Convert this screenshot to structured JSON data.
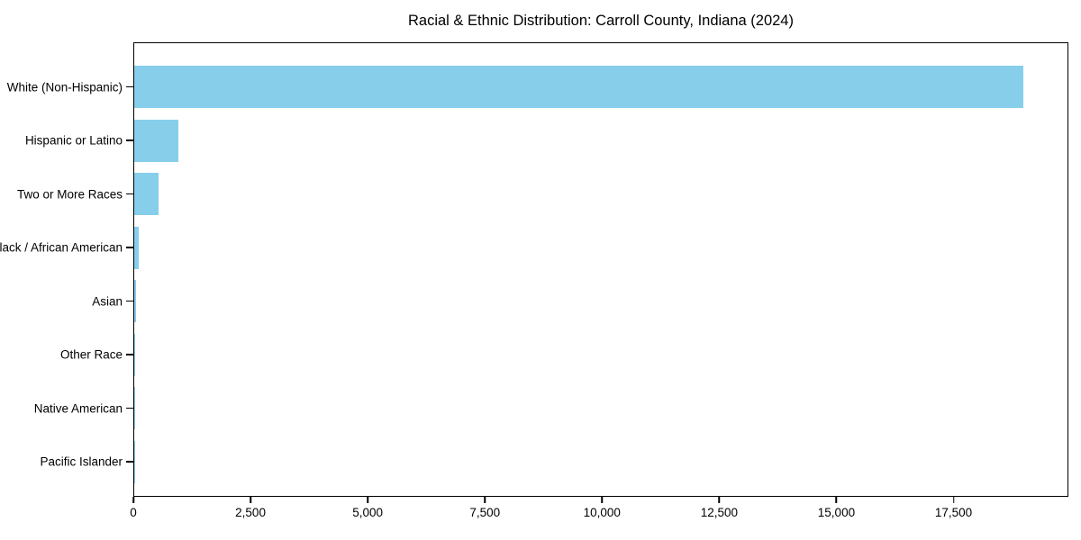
{
  "figure": {
    "title": "Racial & Ethnic Distribution: Carroll County, Indiana (2024)"
  },
  "colors": {
    "bar": "#87CEEB",
    "axis": "#000000",
    "text": "#000000",
    "background": "#FFFFFF"
  },
  "chart_data": {
    "type": "bar",
    "orientation": "horizontal",
    "title": "Racial & Ethnic Distribution: Carroll County, Indiana (2024)",
    "categories": [
      "White (Non-Hispanic)",
      "Hispanic or Latino",
      "Two or More Races",
      "Black / African American",
      "Asian",
      "Other Race",
      "Native American",
      "Pacific Islander"
    ],
    "values": [
      19000,
      935,
      525,
      88,
      30,
      18,
      10,
      4
    ],
    "xlabel": "",
    "ylabel": "",
    "xlim": [
      0,
      19950
    ],
    "xticks": [
      0,
      2500,
      5000,
      7500,
      10000,
      12500,
      15000,
      17500
    ],
    "xtick_labels": [
      "0",
      "2,500",
      "5,000",
      "7,500",
      "10,000",
      "12,500",
      "15,000",
      "17,500"
    ],
    "grid": false,
    "legend": "none",
    "bar_color": "#87CEEB"
  }
}
